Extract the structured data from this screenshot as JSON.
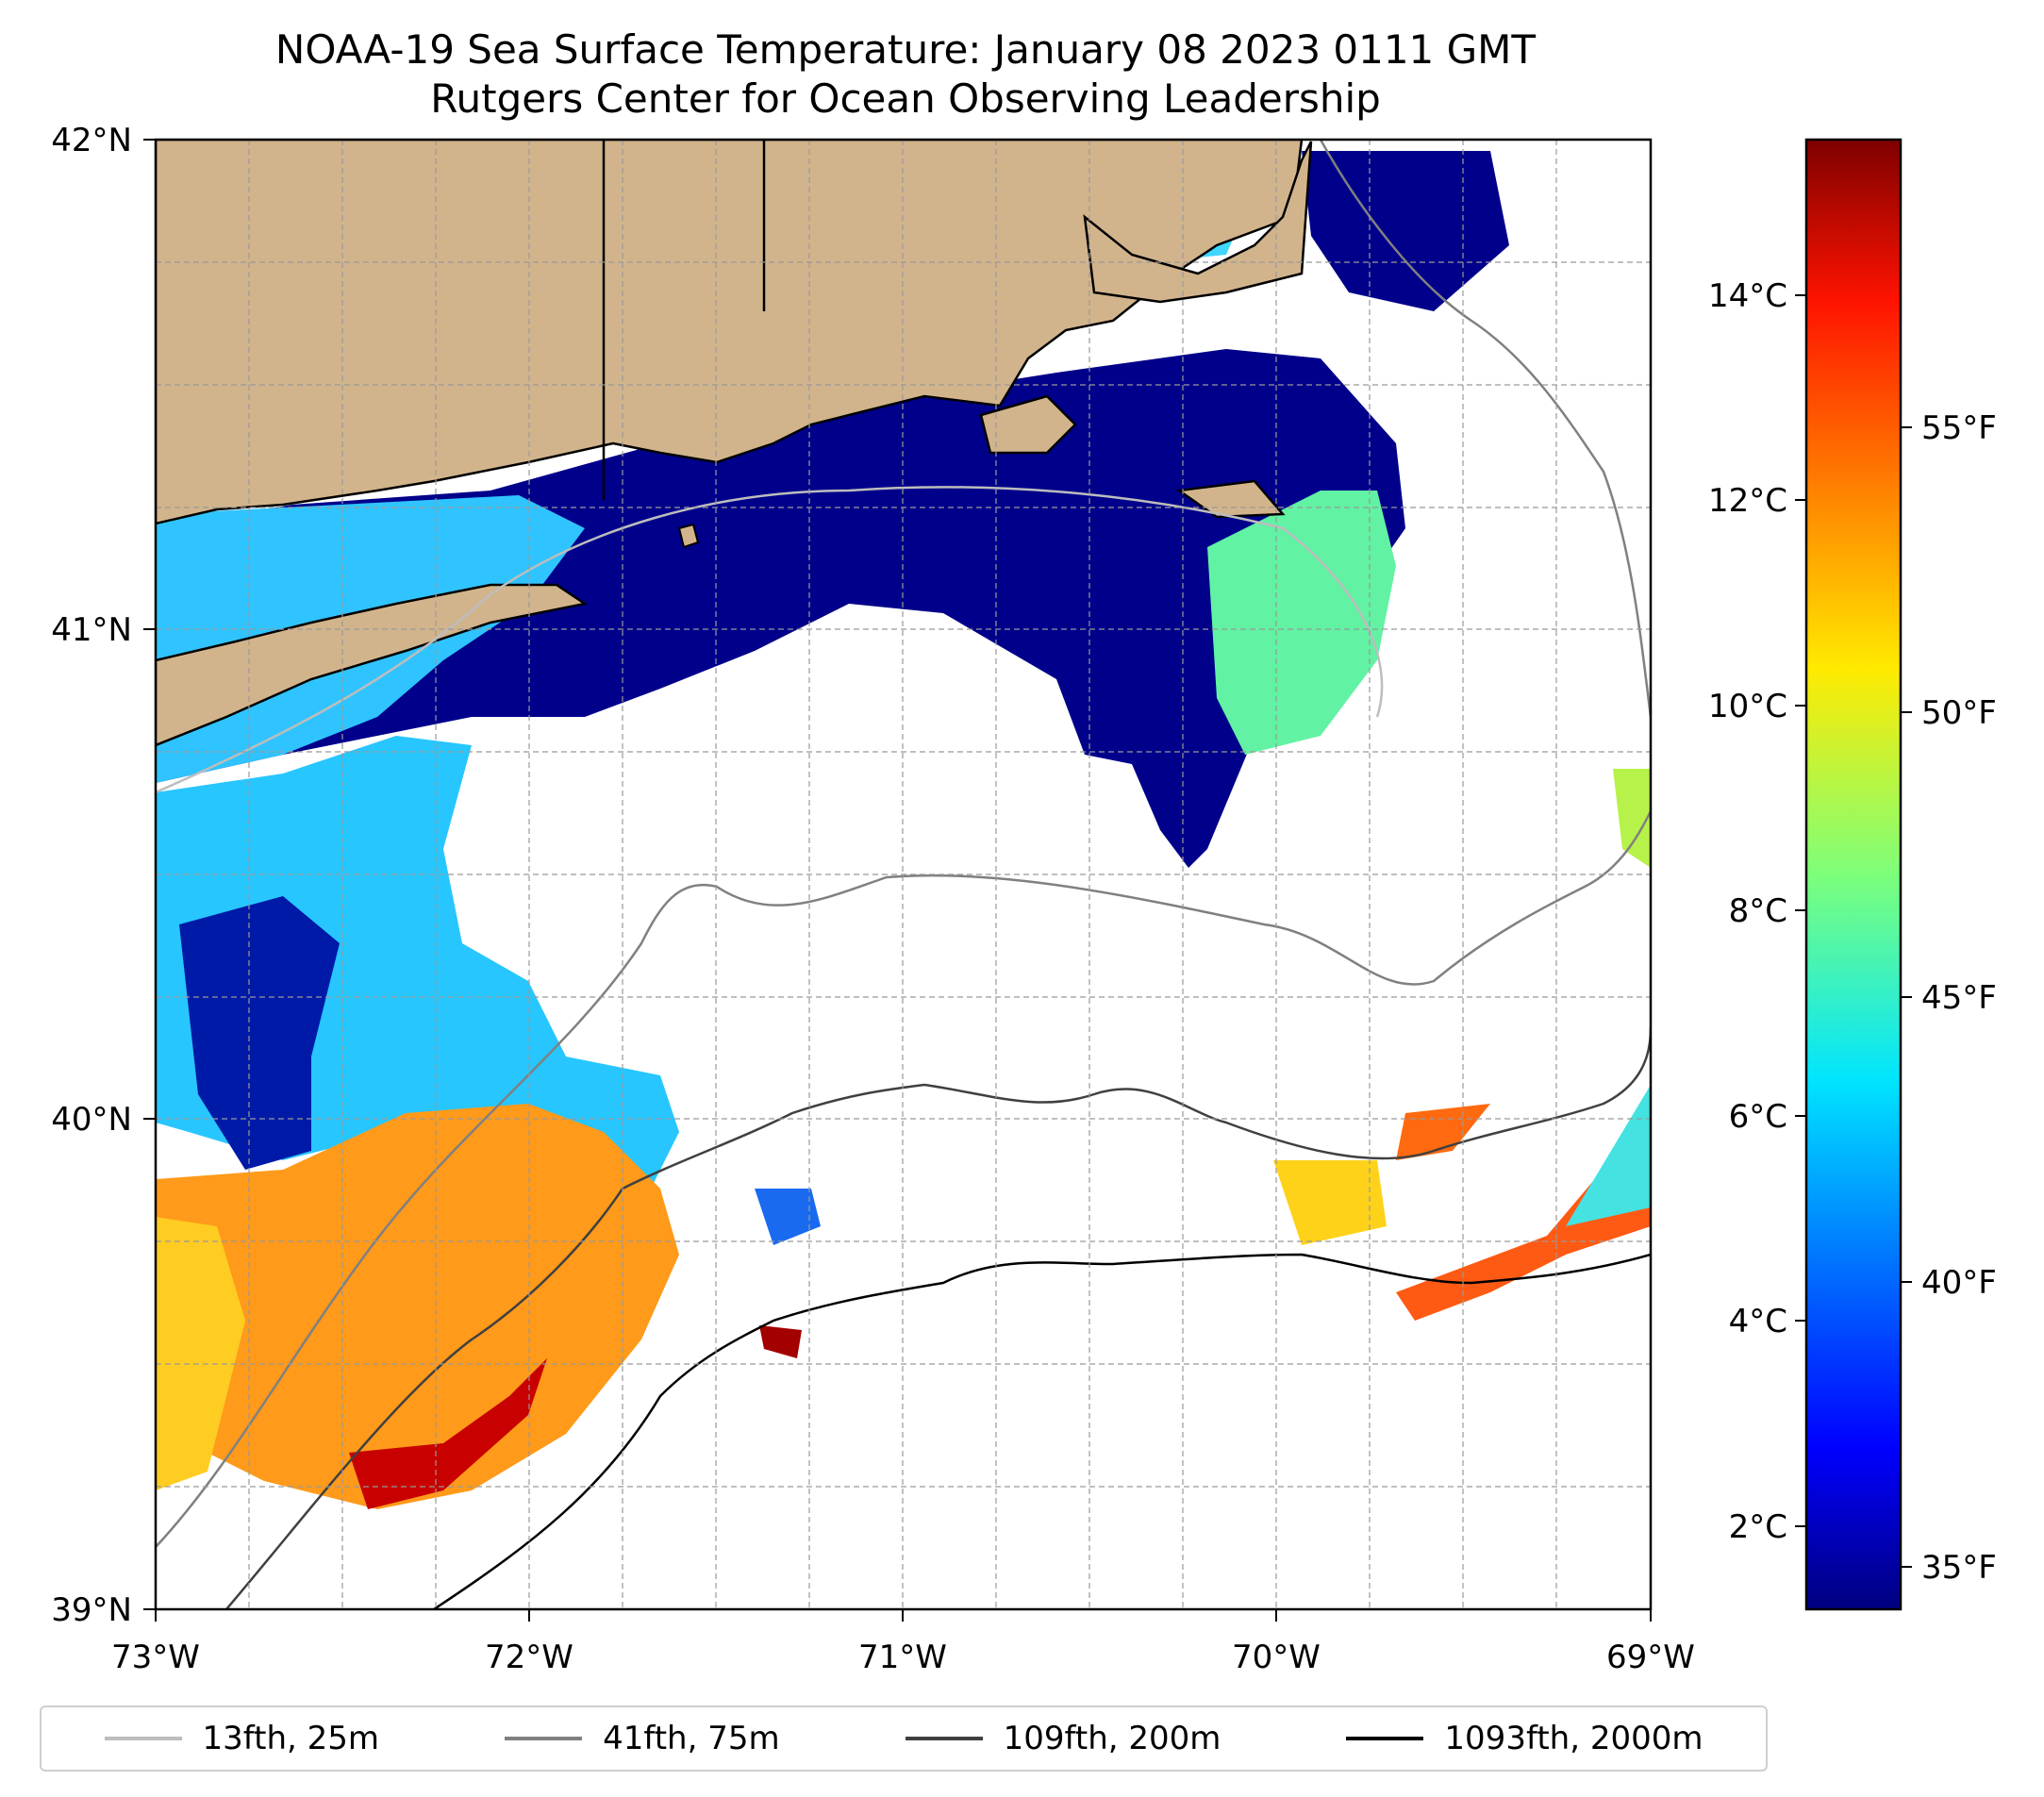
{
  "title": "NOAA-19 Sea Surface Temperature: January 08 2023 0111 GMT",
  "subtitle": "Rutgers Center for Ocean Observing Leadership",
  "map": {
    "lat_labels": [
      "42°N",
      "41°N",
      "40°N",
      "39°N"
    ],
    "lon_labels": [
      "73°W",
      "72°W",
      "71°W",
      "70°W",
      "69°W"
    ],
    "extent": {
      "lon_min": -73,
      "lon_max": -69,
      "lat_min": 39,
      "lat_max": 42
    },
    "land_color": "#d2b48c",
    "cold_water_color": "#00008b"
  },
  "colorbar": {
    "celsius_labels": [
      "14°C",
      "12°C",
      "10°C",
      "8°C",
      "6°C",
      "4°C",
      "2°C"
    ],
    "fahrenheit_labels": [
      "55°F",
      "50°F",
      "45°F",
      "40°F",
      "35°F"
    ],
    "colormap": "jet"
  },
  "legend": {
    "items": [
      {
        "label": "13fth, 25m",
        "color": "#bdbdbd"
      },
      {
        "label": "41fth, 75m",
        "color": "#808080"
      },
      {
        "label": "109fth, 200m",
        "color": "#404040"
      },
      {
        "label": "1093fth, 2000m",
        "color": "#000000"
      }
    ]
  }
}
